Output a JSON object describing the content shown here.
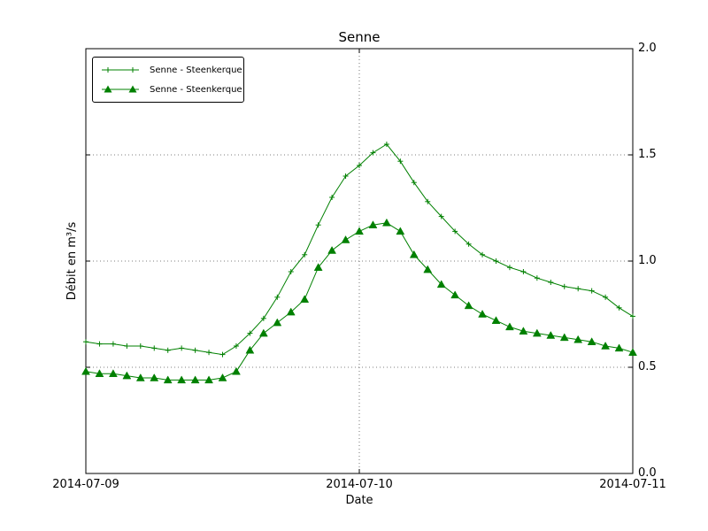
{
  "figure": {
    "background": "#ffffff",
    "plot_border_color": "#000000",
    "grid_color": "#555555"
  },
  "chart_data": {
    "type": "line",
    "title": "Senne",
    "xlabel": "Date",
    "ylabel": "Débit en m³/s",
    "x_units": "days from 2014-07-09",
    "xlim": [
      0,
      2
    ],
    "ylim": [
      0.0,
      2.0
    ],
    "grid": {
      "x": [
        1
      ],
      "y": [
        0.5,
        1.0,
        1.5
      ]
    },
    "xtick_positions": [
      0,
      1,
      2
    ],
    "xtick_labels": [
      "2014-07-09",
      "2014-07-10",
      "2014-07-11"
    ],
    "ytick_positions": [
      0.0,
      0.5,
      1.0,
      1.5,
      2.0
    ],
    "ytick_labels": [
      "0.0",
      "0.5",
      "1.0",
      "1.5",
      "2.0"
    ],
    "yticks_side": "right",
    "legend_position": "upper-left",
    "x": [
      0,
      0.05,
      0.1,
      0.15,
      0.2,
      0.25,
      0.3,
      0.35,
      0.4,
      0.45,
      0.5,
      0.55,
      0.6,
      0.65,
      0.7,
      0.75,
      0.8,
      0.85,
      0.9,
      0.95,
      1,
      1.05,
      1.1,
      1.15,
      1.2,
      1.25,
      1.3,
      1.35,
      1.4,
      1.45,
      1.5,
      1.55,
      1.6,
      1.65,
      1.7,
      1.75,
      1.8,
      1.85,
      1.9,
      1.95,
      2
    ],
    "series": [
      {
        "name": "Senne - Steenkerque",
        "marker": "plus",
        "color": "#008000",
        "values": [
          0.62,
          0.61,
          0.61,
          0.6,
          0.6,
          0.59,
          0.58,
          0.59,
          0.58,
          0.57,
          0.56,
          0.6,
          0.66,
          0.73,
          0.83,
          0.95,
          1.03,
          1.17,
          1.3,
          1.4,
          1.45,
          1.51,
          1.55,
          1.47,
          1.37,
          1.28,
          1.21,
          1.14,
          1.08,
          1.03,
          1.0,
          0.97,
          0.95,
          0.92,
          0.9,
          0.88,
          0.87,
          0.86,
          0.83,
          0.78,
          0.74
        ]
      },
      {
        "name": "Senne - Steenkerque",
        "marker": "triangle",
        "color": "#008000",
        "values": [
          0.48,
          0.47,
          0.47,
          0.46,
          0.45,
          0.45,
          0.44,
          0.44,
          0.44,
          0.44,
          0.45,
          0.48,
          0.58,
          0.66,
          0.71,
          0.76,
          0.82,
          0.97,
          1.05,
          1.1,
          1.14,
          1.17,
          1.18,
          1.14,
          1.03,
          0.96,
          0.89,
          0.84,
          0.79,
          0.75,
          0.72,
          0.69,
          0.67,
          0.66,
          0.65,
          0.64,
          0.63,
          0.62,
          0.6,
          0.59,
          0.57
        ]
      }
    ]
  }
}
